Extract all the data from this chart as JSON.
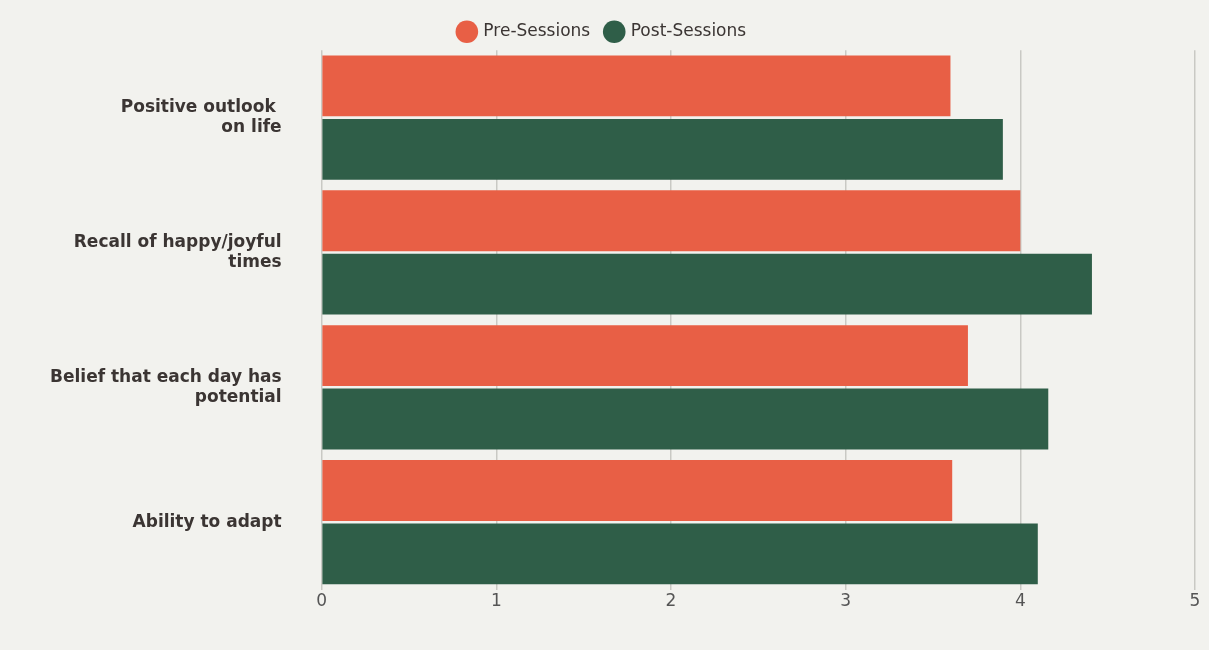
{
  "chart_data": {
    "type": "bar",
    "orientation": "horizontal",
    "categories": [
      "Positive outlook \non life",
      "Recall of happy/joyful\ntimes",
      "Belief that each day has\npotential",
      "Ability to adapt"
    ],
    "series": [
      {
        "name": "Pre-Sessions",
        "color": "#e85f45",
        "values": [
          3.6,
          4.0,
          3.7,
          3.61
        ]
      },
      {
        "name": "Post-Sessions",
        "color": "#2f5e48",
        "values": [
          3.9,
          4.41,
          4.16,
          4.1
        ]
      }
    ],
    "xlim": [
      0,
      5
    ],
    "xticks": [
      0,
      1,
      2,
      3,
      4,
      5
    ],
    "grid": "x",
    "legend": "top",
    "marker": "circle"
  }
}
